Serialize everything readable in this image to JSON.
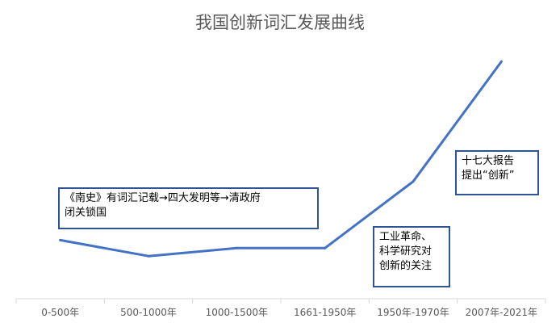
{
  "chart_data": {
    "type": "line",
    "title": "我国创新词汇发展曲线",
    "categories": [
      "0-500年",
      "500-1000年",
      "1000-1500年",
      "1661-1950年",
      "1950年-1970年",
      "2007年-2021年"
    ],
    "series": [
      {
        "values": [
          2.2,
          1.6,
          1.9,
          1.9,
          4.4,
          8.9
        ]
      }
    ],
    "ylim": [
      0,
      10
    ],
    "line_color": "#4472c4",
    "grid": false,
    "annotations": [
      {
        "lines": [
          "《南史》有词汇记载→四大发明等→清政府",
          "闭关锁国"
        ]
      },
      {
        "lines": [
          "工业革命、",
          "科学研究对",
          "创新的关注"
        ]
      },
      {
        "lines": [
          "十七大报告",
          "提出“创新”"
        ]
      }
    ]
  }
}
